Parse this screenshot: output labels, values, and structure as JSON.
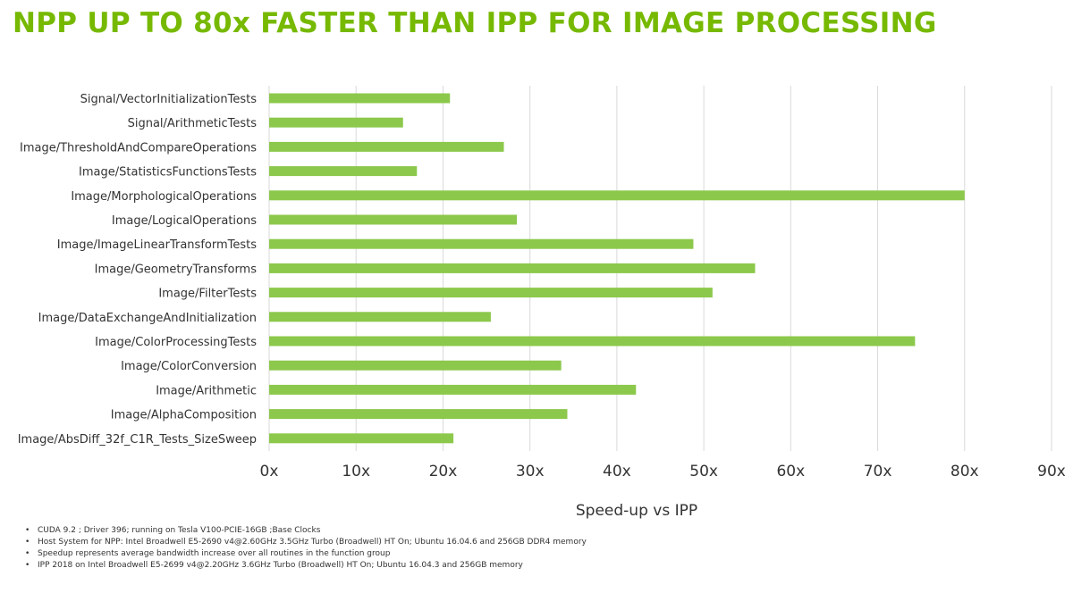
{
  "colors": {
    "title": "#76b900",
    "bar": "#8cc84b",
    "grid": "#d9d9d9"
  },
  "chart_data": {
    "type": "bar",
    "orientation": "horizontal",
    "title": "NPP UP TO 80x FASTER THAN IPP FOR IMAGE PROCESSING",
    "xlabel": "Speed-up vs IPP",
    "ylabel": "",
    "xlim": [
      0,
      90
    ],
    "grid": true,
    "legend": "none",
    "x_ticks": [
      "0x",
      "10x",
      "20x",
      "30x",
      "40x",
      "50x",
      "60x",
      "70x",
      "80x",
      "90x"
    ],
    "categories": [
      "Signal/VectorInitializationTests",
      "Signal/ArithmeticTests",
      "Image/ThresholdAndCompareOperations",
      "Image/StatisticsFunctionsTests",
      "Image/MorphologicalOperations",
      "Image/LogicalOperations",
      "Image/ImageLinearTransformTests",
      "Image/GeometryTransforms",
      "Image/FilterTests",
      "Image/DataExchangeAndInitialization",
      "Image/ColorProcessingTests",
      "Image/ColorConversion",
      "Image/Arithmetic",
      "Image/AlphaComposition",
      "Image/AbsDiff_32f_C1R_Tests_SizeSweep"
    ],
    "values": [
      20.8,
      15.4,
      27.0,
      17.0,
      80.0,
      28.5,
      48.8,
      55.9,
      51.0,
      25.5,
      74.3,
      33.6,
      42.2,
      34.3,
      21.2
    ]
  },
  "footnotes": [
    "CUDA 9.2 ; Driver 396; running on Tesla V100-PCIE-16GB ;Base Clocks",
    "Host System for NPP: Intel Broadwell E5-2690 v4@2.60GHz 3.5GHz Turbo (Broadwell) HT On; Ubuntu 16.04.6 and 256GB DDR4 memory",
    "Speedup represents average bandwidth increase over all routines in the function group",
    "IPP 2018 on Intel Broadwell E5-2699 v4@2.20GHz 3.6GHz Turbo (Broadwell) HT On; Ubuntu 16.04.3 and 256GB memory"
  ]
}
